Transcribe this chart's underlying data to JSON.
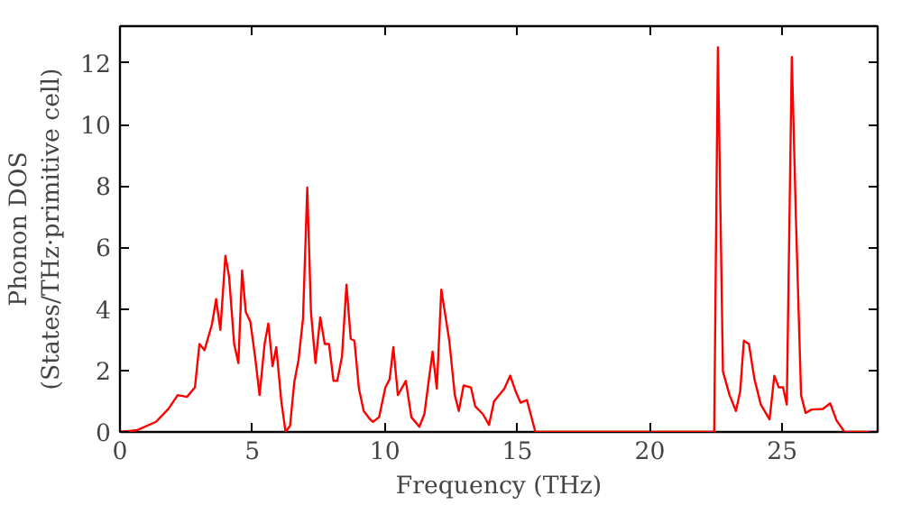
{
  "chart_data": {
    "type": "line",
    "xlabel": "Frequency (THz)",
    "ylabel": "Phonon DOS\n(States/THz·primitive cell)",
    "xlim": [
      0,
      28.6
    ],
    "ylim": [
      0,
      13.2
    ],
    "xticks": [
      0,
      5,
      10,
      15,
      20,
      25
    ],
    "yticks": [
      0,
      2,
      4,
      6,
      8,
      10,
      12
    ],
    "grid": false,
    "series": [
      {
        "color": "#ff0000",
        "x": [
          0,
          0.66,
          1.36,
          1.83,
          2.18,
          2.53,
          2.83,
          3.0,
          3.19,
          3.47,
          3.63,
          3.79,
          3.98,
          4.12,
          4.31,
          4.47,
          4.61,
          4.75,
          4.92,
          5.1,
          5.27,
          5.46,
          5.6,
          5.76,
          5.9,
          6.09,
          6.25,
          6.42,
          6.58,
          6.74,
          6.91,
          7.07,
          7.21,
          7.38,
          7.56,
          7.73,
          7.89,
          8.06,
          8.2,
          8.38,
          8.55,
          8.71,
          8.85,
          9.02,
          9.2,
          9.44,
          9.55,
          9.78,
          10.02,
          10.18,
          10.32,
          10.49,
          10.79,
          11.0,
          11.3,
          11.49,
          11.8,
          11.96,
          12.13,
          12.43,
          12.64,
          12.79,
          12.97,
          13.25,
          13.41,
          13.7,
          13.93,
          14.12,
          14.35,
          14.51,
          14.73,
          14.94,
          15.12,
          15.36,
          15.68,
          22.43,
          22.57,
          22.76,
          23.01,
          23.25,
          23.41,
          23.55,
          23.74,
          23.95,
          24.19,
          24.52,
          24.7,
          24.87,
          25.03,
          25.17,
          25.36,
          25.52,
          25.71,
          25.88,
          26.11,
          26.53,
          26.81,
          27.05,
          27.35,
          28.59
        ],
        "values": [
          0,
          0.06,
          0.33,
          0.75,
          1.2,
          1.14,
          1.45,
          2.86,
          2.66,
          3.49,
          4.32,
          3.32,
          5.73,
          5.04,
          2.86,
          2.24,
          5.25,
          3.9,
          3.59,
          2.45,
          1.2,
          2.86,
          3.53,
          2.14,
          2.76,
          1.0,
          0,
          0.2,
          1.62,
          2.34,
          3.69,
          7.95,
          3.9,
          2.24,
          3.73,
          2.86,
          2.86,
          1.66,
          1.66,
          2.45,
          4.79,
          3.03,
          2.97,
          1.41,
          0.68,
          0.41,
          0.33,
          0.48,
          1.45,
          1.72,
          2.76,
          1.2,
          1.66,
          0.48,
          0.17,
          0.58,
          2.61,
          1.41,
          4.63,
          2.97,
          1.2,
          0.68,
          1.51,
          1.45,
          0.83,
          0.58,
          0.23,
          1.0,
          1.24,
          1.41,
          1.83,
          1.31,
          0.95,
          1.04,
          0,
          0,
          12.51,
          1.97,
          1.2,
          0.68,
          1.31,
          2.97,
          2.86,
          1.72,
          0.89,
          0.41,
          1.83,
          1.45,
          1.45,
          0.89,
          12.2,
          6.8,
          1.2,
          0.62,
          0.73,
          0.75,
          0.93,
          0.37,
          0,
          0
        ]
      }
    ]
  }
}
